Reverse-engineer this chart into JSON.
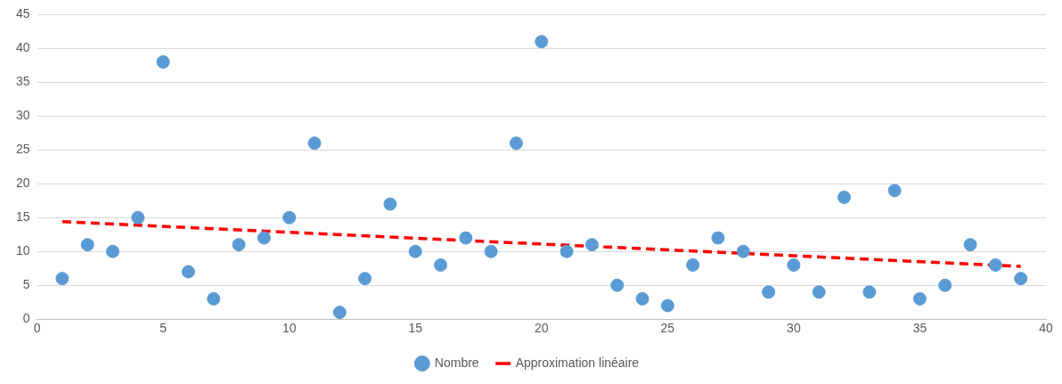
{
  "chart_data": {
    "type": "scatter",
    "x": [
      1,
      2,
      3,
      4,
      5,
      6,
      7,
      8,
      9,
      10,
      11,
      12,
      13,
      14,
      15,
      16,
      17,
      18,
      19,
      20,
      21,
      22,
      23,
      24,
      25,
      26,
      27,
      28,
      29,
      30,
      31,
      32,
      33,
      34,
      35,
      36,
      37,
      38,
      39
    ],
    "series": [
      {
        "name": "Nombre",
        "color": "#5b9bd5",
        "marker": "circle",
        "values": [
          6,
          11,
          10,
          15,
          38,
          7,
          3,
          11,
          12,
          15,
          26,
          1,
          6,
          17,
          10,
          8,
          12,
          10,
          26,
          41,
          10,
          11,
          5,
          3,
          2,
          8,
          12,
          10,
          4,
          8,
          4,
          18,
          4,
          19,
          3,
          5,
          11,
          8,
          6
        ]
      },
      {
        "name": "Approximation linéaire",
        "type": "line",
        "color": "#ff0000",
        "line_style": "dashed",
        "marker": "none",
        "x": [
          1,
          39
        ],
        "values": [
          14.4,
          7.8
        ]
      }
    ],
    "xlim": [
      0,
      40
    ],
    "xticks": [
      0,
      5,
      10,
      15,
      20,
      25,
      30,
      35,
      40
    ],
    "ylim": [
      0,
      45
    ],
    "yticks": [
      0,
      5,
      10,
      15,
      20,
      25,
      30,
      35,
      40,
      45
    ],
    "grid": "y",
    "legend": "bottom"
  }
}
